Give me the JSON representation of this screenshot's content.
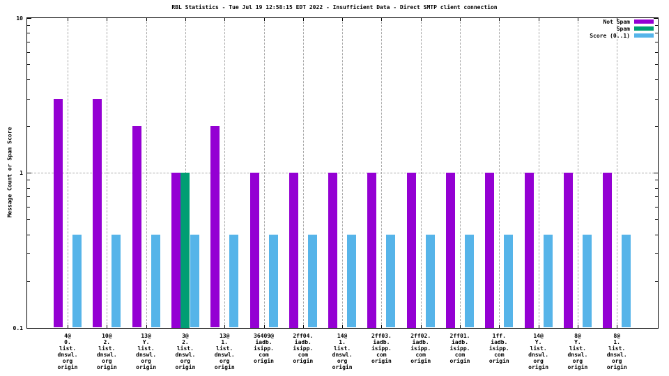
{
  "title": "RBL Statistics - Tue Jul 19 12:58:15 EDT 2022 - Insufficient Data - Direct SMTP client connection",
  "ylabel": "Message Count or Spam Score",
  "legend": {
    "position": "top-right",
    "entries": [
      {
        "label": "Not Spam",
        "color": "#9400d3"
      },
      {
        "label": "Spam",
        "color": "#009e73"
      },
      {
        "label": "Score (0..1)",
        "color": "#56b4e9"
      }
    ]
  },
  "chart_data": {
    "type": "bar",
    "yscale": "log",
    "ylim": [
      0.1,
      10
    ],
    "grid": {
      "vertical_per_category": true,
      "horizontal_values": [
        1
      ]
    },
    "ytick_labels": [
      {
        "value": 10,
        "label": "10"
      },
      {
        "value": 1,
        "label": "1"
      },
      {
        "value": 0.1,
        "label": "0.1"
      }
    ],
    "categories": [
      [
        "4@",
        "0.",
        "list.",
        "dnswl.",
        "org",
        "origin"
      ],
      [
        "10@",
        "2.",
        "list.",
        "dnswl.",
        "org",
        "origin"
      ],
      [
        "13@",
        "Y.",
        "list.",
        "dnswl.",
        "org",
        "origin"
      ],
      [
        "3@",
        "2.",
        "list.",
        "dnswl.",
        "org",
        "origin"
      ],
      [
        "13@",
        "1.",
        "list.",
        "dnswl.",
        "org",
        "origin"
      ],
      [
        "36409@",
        "iadb.",
        "isipp.",
        "com",
        "origin"
      ],
      [
        "2ff04.",
        "iadb.",
        "isipp.",
        "com",
        "origin"
      ],
      [
        "14@",
        "1.",
        "list.",
        "dnswl.",
        "org",
        "origin"
      ],
      [
        "2ff03.",
        "iadb.",
        "isipp.",
        "com",
        "origin"
      ],
      [
        "2ff02.",
        "iadb.",
        "isipp.",
        "com",
        "origin"
      ],
      [
        "2ff01.",
        "iadb.",
        "isipp.",
        "com",
        "origin"
      ],
      [
        "1ff.",
        "iadb.",
        "isipp.",
        "com",
        "origin"
      ],
      [
        "14@",
        "Y.",
        "list.",
        "dnswl.",
        "org",
        "origin"
      ],
      [
        "8@",
        "Y.",
        "list.",
        "dnswl.",
        "org",
        "origin"
      ],
      [
        "8@",
        "1.",
        "list.",
        "dnswl.",
        "org",
        "origin"
      ]
    ],
    "series": [
      {
        "name": "Not Spam",
        "color": "#9400d3",
        "values": [
          3,
          3,
          2,
          1,
          2,
          1,
          1,
          1,
          1,
          1,
          1,
          1,
          1,
          1,
          1
        ]
      },
      {
        "name": "Spam",
        "color": "#009e73",
        "values": [
          0,
          0,
          0,
          1,
          0,
          0,
          0,
          0,
          0,
          0,
          0,
          0,
          0,
          0,
          0
        ]
      },
      {
        "name": "Score (0..1)",
        "color": "#56b4e9",
        "values": [
          0.4,
          0.4,
          0.4,
          0.4,
          0.4,
          0.4,
          0.4,
          0.4,
          0.4,
          0.4,
          0.4,
          0.4,
          0.4,
          0.4,
          0.4
        ]
      }
    ]
  }
}
